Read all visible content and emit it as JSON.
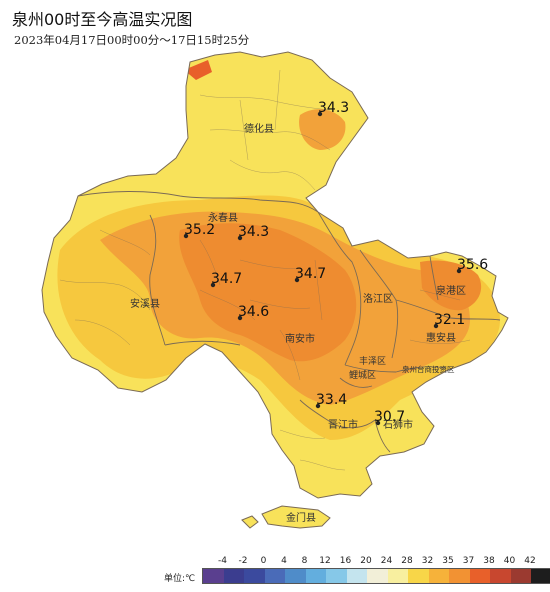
{
  "title": "泉州00时至今高温实况图",
  "subtitle": "2023年04月17日00时00分～17日15时25分",
  "places": [
    {
      "id": "dehua",
      "label": "德化县"
    },
    {
      "id": "yongchun",
      "label": "永春县"
    },
    {
      "id": "anxi",
      "label": "安溪县"
    },
    {
      "id": "nanan",
      "label": "南安市"
    },
    {
      "id": "luojiang",
      "label": "洛江区"
    },
    {
      "id": "quangang",
      "label": "泉港区"
    },
    {
      "id": "huian",
      "label": "惠安县"
    },
    {
      "id": "fengze",
      "label": "丰泽区"
    },
    {
      "id": "licheng",
      "label": "鲤城区"
    },
    {
      "id": "taishang",
      "label": "泉州台商投资区"
    },
    {
      "id": "jinjiang",
      "label": "晋江市"
    },
    {
      "id": "shishi",
      "label": "石狮市"
    },
    {
      "id": "jinmen",
      "label": "金门县"
    }
  ],
  "temperatures": [
    {
      "id": "t-dehua",
      "value": "34.3"
    },
    {
      "id": "t-yongchun-w",
      "value": "35.2"
    },
    {
      "id": "t-yongchun-e",
      "value": "34.3"
    },
    {
      "id": "t-anxi-e",
      "value": "34.7"
    },
    {
      "id": "t-nanan-n",
      "value": "34.7"
    },
    {
      "id": "t-nanan-w",
      "value": "34.6"
    },
    {
      "id": "t-quangang",
      "value": "35.6"
    },
    {
      "id": "t-huian",
      "value": "32.1"
    },
    {
      "id": "t-jinjiang",
      "value": "33.4"
    },
    {
      "id": "t-shishi",
      "value": "30.7"
    }
  ],
  "legend": {
    "unit_label": "单位:℃",
    "ticks": [
      "-4",
      "-2",
      "0",
      "4",
      "8",
      "12",
      "16",
      "20",
      "24",
      "28",
      "32",
      "35",
      "37",
      "38",
      "40",
      "42"
    ],
    "colors": [
      "#5a3f8f",
      "#3b3d8f",
      "#3b4a9e",
      "#4a6bb8",
      "#4f8cc9",
      "#63aede",
      "#86c8e8",
      "#c4e4ee",
      "#f2efd8",
      "#f8ef9f",
      "#f8d648",
      "#f6b23a",
      "#f29233",
      "#e8602a",
      "#c8472f",
      "#9b3a30",
      "#1d1d1d"
    ]
  },
  "colors": {
    "land_light": "#f8e25a",
    "land_mid": "#f6c83e",
    "land_hot": "#f2a23a",
    "land_hottest": "#ee8c30",
    "sea": "#ffffff",
    "border": "#7a6a55"
  }
}
